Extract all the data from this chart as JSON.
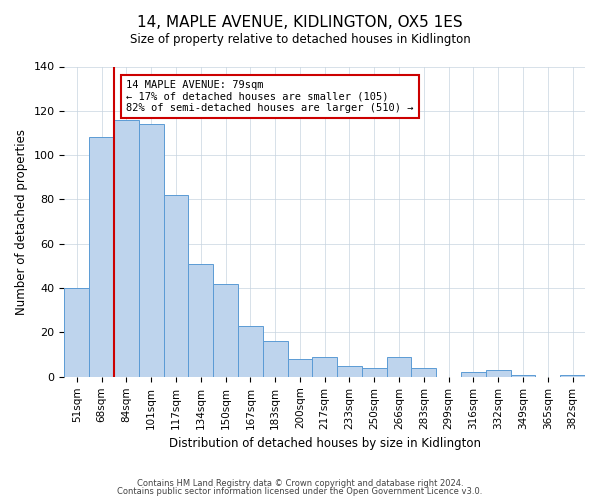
{
  "title": "14, MAPLE AVENUE, KIDLINGTON, OX5 1ES",
  "subtitle": "Size of property relative to detached houses in Kidlington",
  "xlabel": "Distribution of detached houses by size in Kidlington",
  "ylabel": "Number of detached properties",
  "categories": [
    "51sqm",
    "68sqm",
    "84sqm",
    "101sqm",
    "117sqm",
    "134sqm",
    "150sqm",
    "167sqm",
    "183sqm",
    "200sqm",
    "217sqm",
    "233sqm",
    "250sqm",
    "266sqm",
    "283sqm",
    "299sqm",
    "316sqm",
    "332sqm",
    "349sqm",
    "365sqm",
    "382sqm"
  ],
  "values": [
    40,
    108,
    116,
    114,
    82,
    51,
    42,
    23,
    16,
    8,
    9,
    5,
    4,
    9,
    4,
    0,
    2,
    3,
    1,
    0,
    1
  ],
  "bar_color": "#bed4ed",
  "bar_edge_color": "#5b9bd5",
  "vline_color": "#cc0000",
  "vline_index": 1.5,
  "annotation_text": "14 MAPLE AVENUE: 79sqm\n← 17% of detached houses are smaller (105)\n82% of semi-detached houses are larger (510) →",
  "annotation_box_color": "#ffffff",
  "annotation_box_edge_color": "#cc0000",
  "ylim": [
    0,
    140
  ],
  "yticks": [
    0,
    20,
    40,
    60,
    80,
    100,
    120,
    140
  ],
  "footer1": "Contains HM Land Registry data © Crown copyright and database right 2024.",
  "footer2": "Contains public sector information licensed under the Open Government Licence v3.0.",
  "background_color": "#ffffff",
  "grid_color": "#c8d4e0"
}
